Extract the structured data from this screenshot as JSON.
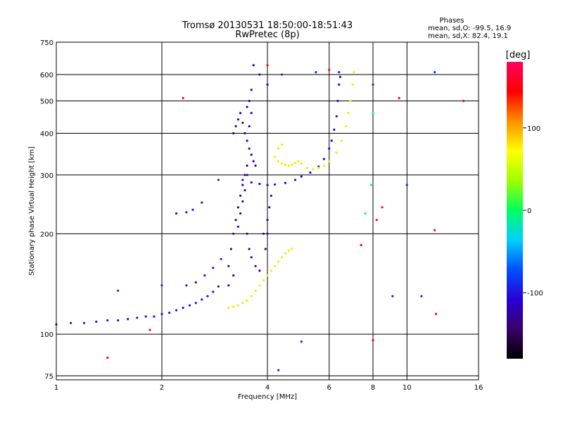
{
  "chart_data": {
    "type": "scatter",
    "title": "Tromsø 20130531 18:50:00-18:51:43",
    "subtitle": "RwPretec (8p)",
    "xlabel": "Frequency [MHz]",
    "ylabel": "Stationary phase Virtual Height [km]",
    "xscale": "log",
    "yscale": "log",
    "xlim": [
      1,
      16
    ],
    "ylim": [
      73,
      750
    ],
    "x_ticks": [
      1,
      2,
      4,
      6,
      8,
      10,
      16
    ],
    "x_tick_labels": [
      "1",
      "2",
      "4",
      "6",
      "8",
      "10",
      "16"
    ],
    "y_ticks": [
      75,
      100,
      200,
      300,
      400,
      500,
      600,
      750
    ],
    "y_tick_labels": [
      "75",
      "100",
      "200",
      "300",
      "400",
      "500",
      "600",
      "750"
    ],
    "grid": true,
    "colorbar": {
      "label": "[deg]",
      "range": [
        -180,
        180
      ],
      "ticks": [
        100,
        0,
        -100
      ],
      "tick_labels": [
        "100",
        "0",
        "-100"
      ],
      "colors": [
        "#000000",
        "#3a0068",
        "#2800d8",
        "#0050ff",
        "#00d0ff",
        "#00ff60",
        "#a0ff00",
        "#ffff00",
        "#ff9000",
        "#ff0000",
        "#ff0060"
      ]
    },
    "stats": {
      "heading": "Phases",
      "line1": "mean, sd,O: -99.5, 16.9",
      "line2": "mean, sd,X:  82.4, 19.1"
    },
    "series": [
      {
        "phase": -100,
        "points": [
          [
            1.0,
            107
          ],
          [
            1.1,
            108
          ],
          [
            1.2,
            108
          ],
          [
            1.3,
            109
          ],
          [
            1.4,
            110
          ],
          [
            1.5,
            110
          ],
          [
            1.6,
            111
          ],
          [
            1.7,
            112
          ],
          [
            1.8,
            113
          ],
          [
            1.9,
            113
          ],
          [
            2.0,
            115
          ],
          [
            2.1,
            116
          ],
          [
            2.2,
            118
          ],
          [
            2.3,
            120
          ],
          [
            2.4,
            122
          ],
          [
            2.5,
            124
          ],
          [
            2.6,
            127
          ],
          [
            2.7,
            130
          ],
          [
            2.8,
            134
          ],
          [
            2.9,
            139
          ],
          [
            2.35,
            140
          ],
          [
            2.5,
            143
          ],
          [
            2.65,
            150
          ],
          [
            2.8,
            158
          ],
          [
            2.95,
            168
          ],
          [
            2.2,
            230
          ],
          [
            2.35,
            232
          ],
          [
            2.45,
            236
          ],
          [
            2.6,
            248
          ]
        ]
      },
      {
        "phase": -110,
        "points": [
          [
            3.4,
            290
          ],
          [
            3.6,
            285
          ],
          [
            3.8,
            282
          ],
          [
            4.0,
            280
          ],
          [
            4.2,
            281
          ],
          [
            4.5,
            284
          ],
          [
            4.8,
            290
          ],
          [
            5.0,
            297
          ],
          [
            5.3,
            305
          ],
          [
            5.6,
            318
          ],
          [
            5.8,
            335
          ],
          [
            6.0,
            360
          ],
          [
            6.1,
            380
          ],
          [
            6.2,
            410
          ],
          [
            6.3,
            450
          ],
          [
            6.35,
            500
          ],
          [
            6.4,
            560
          ],
          [
            6.45,
            590
          ]
        ]
      },
      {
        "phase": -120,
        "points": [
          [
            3.2,
            400
          ],
          [
            3.25,
            420
          ],
          [
            3.3,
            440
          ],
          [
            3.35,
            460
          ],
          [
            3.4,
            430
          ],
          [
            3.45,
            400
          ],
          [
            3.5,
            380
          ],
          [
            3.55,
            360
          ],
          [
            3.6,
            345
          ],
          [
            3.65,
            330
          ],
          [
            3.7,
            320
          ],
          [
            3.5,
            300
          ],
          [
            3.55,
            420
          ],
          [
            3.6,
            460
          ],
          [
            3.5,
            480
          ],
          [
            3.55,
            500
          ],
          [
            3.6,
            540
          ],
          [
            3.65,
            640
          ],
          [
            3.8,
            600
          ],
          [
            4.0,
            560
          ]
        ]
      },
      {
        "phase": -130,
        "points": [
          [
            3.1,
            160
          ],
          [
            3.15,
            180
          ],
          [
            3.2,
            200
          ],
          [
            3.25,
            220
          ],
          [
            3.3,
            240
          ],
          [
            3.35,
            260
          ],
          [
            3.4,
            280
          ],
          [
            3.45,
            300
          ],
          [
            3.5,
            320
          ],
          [
            3.3,
            210
          ],
          [
            3.35,
            230
          ],
          [
            3.4,
            250
          ],
          [
            3.45,
            270
          ],
          [
            3.5,
            200
          ],
          [
            3.55,
            180
          ],
          [
            3.6,
            170
          ],
          [
            3.7,
            160
          ],
          [
            3.8,
            155
          ],
          [
            3.9,
            200
          ],
          [
            4.0,
            220
          ],
          [
            4.05,
            240
          ],
          [
            4.1,
            260
          ],
          [
            4.0,
            200
          ],
          [
            3.95,
            180
          ],
          [
            3.1,
            140
          ],
          [
            3.2,
            150
          ]
        ]
      },
      {
        "phase": 80,
        "points": [
          [
            3.1,
            120
          ],
          [
            3.2,
            121
          ],
          [
            3.3,
            122
          ],
          [
            3.4,
            124
          ],
          [
            3.5,
            126
          ],
          [
            3.6,
            130
          ],
          [
            3.7,
            135
          ],
          [
            3.8,
            140
          ],
          [
            3.9,
            145
          ],
          [
            4.0,
            150
          ],
          [
            4.1,
            155
          ],
          [
            4.2,
            160
          ],
          [
            4.3,
            165
          ],
          [
            4.4,
            170
          ],
          [
            4.5,
            175
          ],
          [
            4.6,
            178
          ],
          [
            4.7,
            180
          ],
          [
            4.2,
            340
          ],
          [
            4.3,
            330
          ],
          [
            4.4,
            325
          ],
          [
            4.5,
            322
          ],
          [
            4.6,
            320
          ],
          [
            4.7,
            322
          ],
          [
            4.8,
            326
          ],
          [
            4.9,
            330
          ],
          [
            5.0,
            325
          ],
          [
            5.2,
            315
          ],
          [
            5.4,
            312
          ],
          [
            5.6,
            315
          ],
          [
            5.8,
            320
          ],
          [
            6.0,
            330
          ],
          [
            6.3,
            350
          ],
          [
            6.5,
            380
          ],
          [
            6.7,
            420
          ],
          [
            6.8,
            460
          ],
          [
            6.9,
            500
          ],
          [
            7.0,
            560
          ],
          [
            7.05,
            610
          ],
          [
            4.3,
            360
          ],
          [
            4.4,
            370
          ]
        ]
      },
      {
        "phase": 0,
        "points": [
          [
            7.6,
            230
          ],
          [
            8.0,
            460
          ],
          [
            7.9,
            280
          ]
        ]
      },
      {
        "phase": 150,
        "points": [
          [
            1.4,
            85
          ],
          [
            1.85,
            103
          ],
          [
            2.3,
            510
          ],
          [
            4.0,
            640
          ],
          [
            6.0,
            620
          ],
          [
            7.4,
            185
          ],
          [
            8.0,
            96
          ],
          [
            8.2,
            220
          ],
          [
            8.5,
            240
          ],
          [
            9.5,
            510
          ],
          [
            12.0,
            205
          ],
          [
            12.1,
            115
          ],
          [
            14.5,
            500
          ]
        ]
      },
      {
        "phase": -90,
        "points": [
          [
            1.5,
            135
          ],
          [
            2.0,
            140
          ],
          [
            2.9,
            290
          ],
          [
            4.3,
            78
          ],
          [
            4.4,
            600
          ],
          [
            5.0,
            95
          ],
          [
            5.5,
            610
          ],
          [
            6.4,
            610
          ],
          [
            8.0,
            560
          ],
          [
            9.1,
            130
          ],
          [
            10.0,
            280
          ],
          [
            11.0,
            130
          ],
          [
            12.0,
            610
          ]
        ]
      }
    ]
  }
}
